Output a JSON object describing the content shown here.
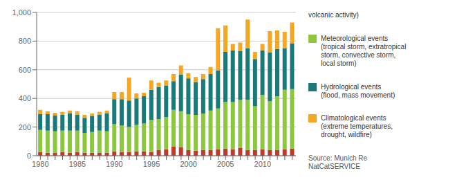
{
  "chart_data": {
    "type": "bar",
    "stacked": true,
    "grid": true,
    "categories": [
      1980,
      null,
      null,
      null,
      null,
      1985,
      null,
      null,
      null,
      null,
      1990,
      null,
      null,
      null,
      null,
      1995,
      null,
      null,
      null,
      null,
      2000,
      null,
      null,
      null,
      null,
      2005,
      null,
      null,
      null,
      null,
      2010,
      null,
      null,
      null,
      null
    ],
    "series": [
      {
        "color": "#c0392b",
        "values": [
          25,
          20,
          20,
          25,
          20,
          25,
          20,
          20,
          20,
          20,
          30,
          25,
          25,
          30,
          30,
          25,
          40,
          45,
          65,
          60,
          40,
          35,
          40,
          40,
          45,
          50,
          45,
          55,
          40,
          40,
          45,
          40,
          40,
          45,
          50
        ]
      },
      {
        "name": "Meteorological events\n(tropical storm, extratropical\nstorm, convective storm,\nlocal storm)",
        "color": "#8dc63f",
        "values": [
          155,
          155,
          150,
          150,
          155,
          150,
          140,
          145,
          155,
          150,
          190,
          185,
          175,
          185,
          195,
          225,
          215,
          225,
          255,
          250,
          250,
          250,
          255,
          275,
          285,
          325,
          330,
          335,
          350,
          305,
          380,
          340,
          375,
          415,
          415
        ]
      },
      {
        "name": "Hydrological events\n(flood, mass movement)",
        "color": "#1a7a7a",
        "values": [
          110,
          115,
          110,
          110,
          120,
          110,
          105,
          110,
          110,
          125,
          175,
          185,
          185,
          185,
          190,
          210,
          225,
          220,
          200,
          255,
          250,
          230,
          240,
          255,
          265,
          350,
          360,
          340,
          360,
          330,
          310,
          340,
          330,
          290,
          320
        ]
      },
      {
        "name": "Climatological events\n(extreme temperatures,\ndrought, wildfire)",
        "color": "#f5a623",
        "values": [
          30,
          20,
          20,
          20,
          20,
          25,
          20,
          20,
          20,
          20,
          50,
          50,
          160,
          35,
          25,
          65,
          30,
          35,
          50,
          65,
          35,
          35,
          35,
          50,
          295,
          185,
          45,
          60,
          200,
          50,
          45,
          150,
          130,
          115,
          145
        ]
      }
    ],
    "ylim": [
      0,
      1000
    ],
    "yticks": [
      0,
      200,
      400,
      600,
      800,
      {
        "value": 1000,
        "label": "1,000"
      }
    ],
    "annotations": [
      "volcanic activity)",
      "Source: Munich Re\nNatCatSERVICE"
    ]
  }
}
